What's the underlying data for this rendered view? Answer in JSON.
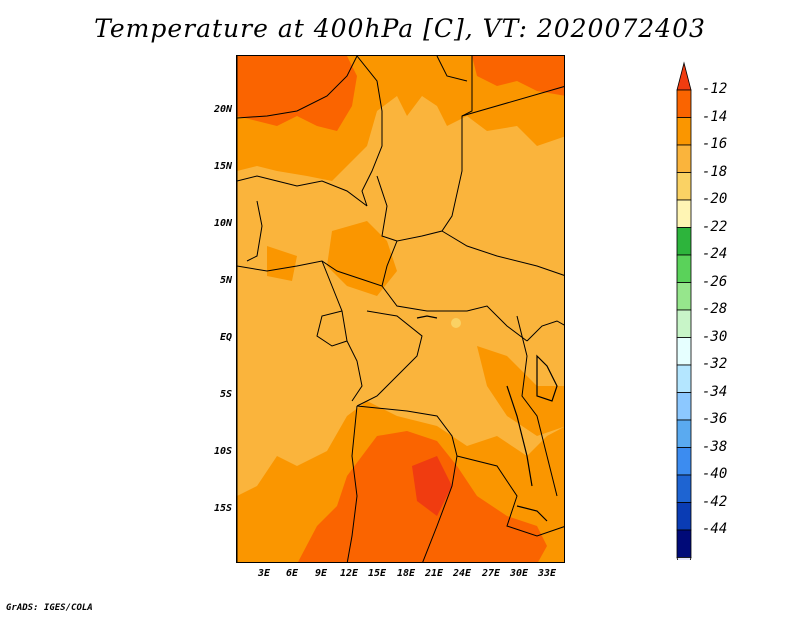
{
  "title": "Temperature at 400hPa [C], VT: 2020072403",
  "credit": "GrADS: IGES/COLA",
  "map": {
    "lat_labels": [
      "20N",
      "15N",
      "10N",
      "5N",
      "EQ",
      "5S",
      "10S",
      "15S"
    ],
    "lon_labels": [
      "3E",
      "6E",
      "9E",
      "12E",
      "15E",
      "18E",
      "21E",
      "24E",
      "27E",
      "30E",
      "33E"
    ]
  },
  "colorbar": {
    "labels": [
      "-12",
      "-14",
      "-16",
      "-18",
      "-20",
      "-22",
      "-24",
      "-26",
      "-28",
      "-30",
      "-32",
      "-34",
      "-36",
      "-38",
      "-40",
      "-42",
      "-44"
    ],
    "colors": [
      "#f03c10",
      "#fa6400",
      "#fa9600",
      "#fab43c",
      "#fad264",
      "#fff5b4",
      "#2db43c",
      "#5ad25a",
      "#96e68c",
      "#c8f5c8",
      "#e6ffff",
      "#b4e6ff",
      "#8cc8ff",
      "#5aaaf0",
      "#3c8cf0",
      "#1e64d2",
      "#0a3cb4",
      "#000a78",
      "#e6e6fa"
    ]
  },
  "colors": {
    "warmest": "#f03c10",
    "orange_dark": "#fa6400",
    "orange": "#fa9600",
    "orange_light": "#fab43c",
    "yellow": "#fad264",
    "cream": "#fff5b4",
    "border": "#000000"
  }
}
